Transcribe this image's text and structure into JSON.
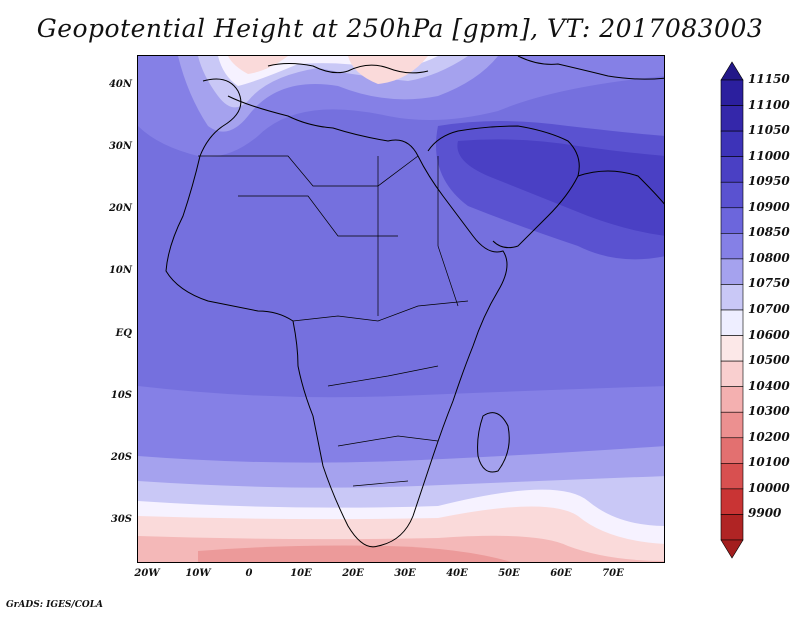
{
  "title": "Geopotential Height at 250hPa [gpm], VT: 2017083003",
  "credit": "GrADS: IGES/COLA",
  "lat_labels": [
    "40N",
    "30N",
    "20N",
    "10N",
    "EQ",
    "10S",
    "20S",
    "30S"
  ],
  "lon_labels": [
    "20W",
    "10W",
    "0",
    "10E",
    "20E",
    "30E",
    "40E",
    "50E",
    "60E",
    "70E"
  ],
  "colorbar": {
    "labels": [
      "11150",
      "11100",
      "11050",
      "11000",
      "10950",
      "10900",
      "10850",
      "10800",
      "10750",
      "10700",
      "10600",
      "10500",
      "10400",
      "10300",
      "10200",
      "10100",
      "10000",
      "9900"
    ],
    "colors": [
      "#2b1f9e",
      "#3427aa",
      "#3d33b8",
      "#4a40c4",
      "#5a52d0",
      "#6c66dc",
      "#8580e6",
      "#a5a2ee",
      "#c9c8f6",
      "#eeeeff",
      "#fce8e8",
      "#f9cfcf",
      "#f4b0b0",
      "#ec9090",
      "#e37070",
      "#d85050",
      "#c93434",
      "#b02424"
    ],
    "top_arrow_color": "#231888",
    "bottom_arrow_color": "#a31e1e"
  },
  "colors": {
    "band_11050": "#4a40c4",
    "band_10950": "#6c66dc",
    "band_10900": "#7570de",
    "band_10800": "#a5a2ee",
    "band_10750": "#c9c8f6",
    "band_10700": "#f6f2ff",
    "band_10600": "#fadada",
    "band_10500": "#f4b8b8",
    "band_10400": "#ec9a9a"
  }
}
